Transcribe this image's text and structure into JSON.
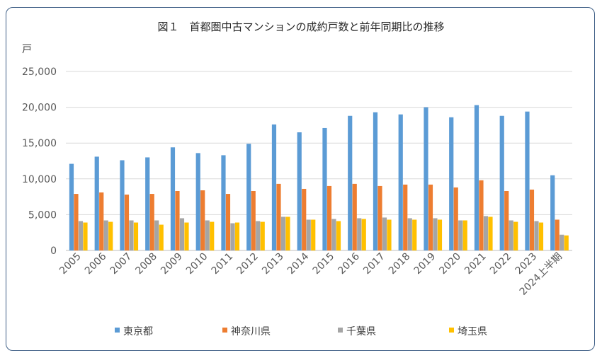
{
  "chart_data": {
    "type": "bar",
    "title": "図１　首都圏中古マンションの成約戸数と前年同期比の推移",
    "ylabel": "戸",
    "ylim": [
      0,
      25000
    ],
    "yticks": [
      0,
      5000,
      10000,
      15000,
      20000,
      25000
    ],
    "ytick_labels": [
      "0",
      "5,000",
      "10,000",
      "15,000",
      "20,000",
      "25,000"
    ],
    "grid": true,
    "legend_position": "bottom",
    "categories": [
      "2005",
      "2006",
      "2007",
      "2008",
      "2009",
      "2010",
      "2011",
      "2012",
      "2013",
      "2014",
      "2015",
      "2016",
      "2017",
      "2018",
      "2019",
      "2020",
      "2021",
      "2022",
      "2023",
      "2024上半期"
    ],
    "series": [
      {
        "name": "東京都",
        "color": "#5b9bd5",
        "values": [
          12100,
          13100,
          12600,
          13000,
          14400,
          13600,
          13300,
          14900,
          17600,
          16500,
          17100,
          18800,
          19300,
          19000,
          20000,
          18600,
          20300,
          18800,
          19400,
          10500
        ]
      },
      {
        "name": "神奈川県",
        "color": "#ed7d31",
        "values": [
          7900,
          8100,
          7800,
          7900,
          8300,
          8400,
          7900,
          8300,
          9300,
          8600,
          9000,
          9300,
          9000,
          9200,
          9200,
          8800,
          9800,
          8300,
          8500,
          4300
        ]
      },
      {
        "name": "千葉県",
        "color": "#a5a5a5",
        "values": [
          4100,
          4200,
          4200,
          4200,
          4500,
          4200,
          3800,
          4100,
          4700,
          4300,
          4400,
          4500,
          4600,
          4500,
          4500,
          4200,
          4800,
          4200,
          4100,
          2200
        ]
      },
      {
        "name": "埼玉県",
        "color": "#ffc000",
        "values": [
          3900,
          4000,
          3900,
          3600,
          3900,
          4000,
          3900,
          4000,
          4700,
          4300,
          4100,
          4400,
          4300,
          4300,
          4300,
          4200,
          4700,
          4000,
          3900,
          2100
        ]
      }
    ]
  }
}
